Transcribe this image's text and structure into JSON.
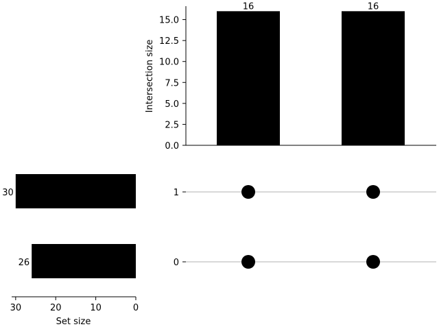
{
  "chart_data": {
    "type": "upset",
    "intersections": {
      "ylabel": "Intersection size",
      "ylim": [
        0,
        16.6
      ],
      "yticks": [
        0,
        2.5,
        5,
        7.5,
        10,
        12.5,
        15
      ],
      "ytick_labels": [
        "0.0",
        "2.5",
        "5.0",
        "7.5",
        "10.0",
        "12.5",
        "15.0"
      ],
      "values": [
        16,
        16
      ],
      "value_labels": [
        "16",
        "16"
      ]
    },
    "sets": [
      {
        "tick_label": "1",
        "size": 30,
        "size_label": "30"
      },
      {
        "tick_label": "0",
        "size": 26,
        "size_label": "26"
      }
    ],
    "set_size_axis": {
      "xlabel": "Set size",
      "xlim": [
        31,
        0
      ],
      "xticks": [
        30,
        20,
        10,
        0
      ],
      "xtick_labels": [
        "30",
        "20",
        "10",
        "0"
      ]
    },
    "matrix": [
      [
        true,
        true
      ],
      [
        true,
        true
      ]
    ],
    "colors": {
      "bar": "#000000",
      "dot": "#000000",
      "gridline": "#b0b0b0"
    }
  }
}
